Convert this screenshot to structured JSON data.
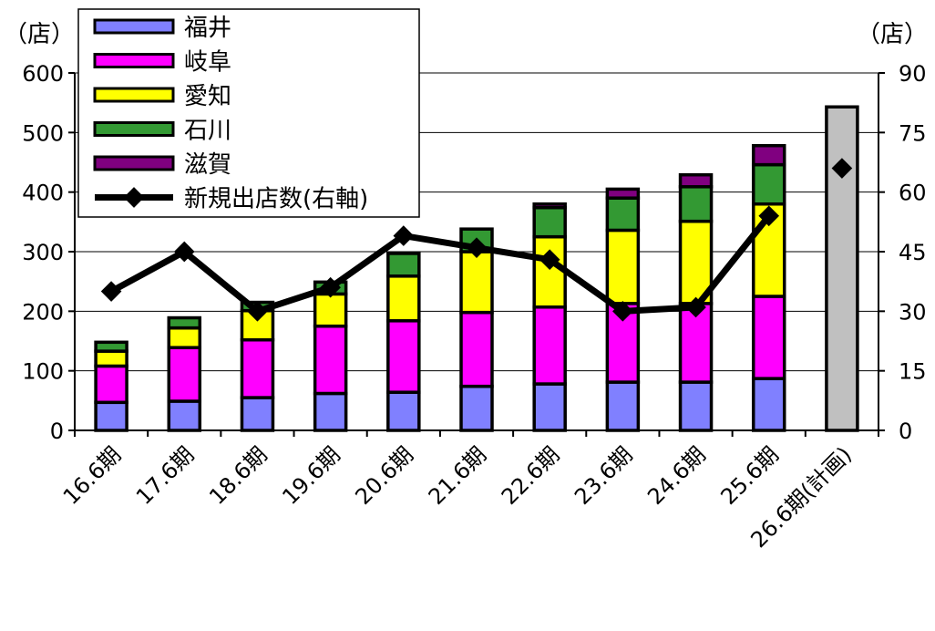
{
  "chart_data": {
    "type": "bar",
    "stacked": true,
    "categories": [
      "16.6期",
      "17.6期",
      "18.6期",
      "19.6期",
      "20.6期",
      "21.6期",
      "22.6期",
      "23.6期",
      "24.6期",
      "25.6期",
      "26.6期(計画)"
    ],
    "series": [
      {
        "name": "福井",
        "color": "#8080ff",
        "values": [
          47,
          49,
          55,
          62,
          64,
          74,
          78,
          81,
          81,
          87,
          null
        ]
      },
      {
        "name": "岐阜",
        "color": "#ff00ff",
        "values": [
          61,
          90,
          97,
          113,
          120,
          124,
          129,
          132,
          132,
          138,
          null
        ]
      },
      {
        "name": "愛知",
        "color": "#ffff00",
        "values": [
          25,
          33,
          49,
          54,
          75,
          102,
          118,
          123,
          138,
          155,
          null
        ]
      },
      {
        "name": "石川",
        "color": "#339933",
        "values": [
          15,
          17,
          14,
          20,
          38,
          38,
          49,
          54,
          58,
          66,
          null
        ]
      },
      {
        "name": "滋賀",
        "color": "#800080",
        "values": [
          0,
          0,
          0,
          0,
          0,
          0,
          6,
          15,
          20,
          32,
          null
        ]
      },
      {
        "name": "26.6期(計画)",
        "color": "#c0c0c0",
        "values": [
          null,
          null,
          null,
          null,
          null,
          null,
          null,
          null,
          null,
          null,
          543
        ]
      }
    ],
    "line_series": {
      "name": "新規出店数(右軸)",
      "axis": "right",
      "color": "#000000",
      "values": [
        35,
        45,
        30,
        36,
        49,
        46,
        43,
        30,
        31,
        54,
        66
      ]
    },
    "left_axis": {
      "unit": "（店）",
      "ylim": [
        0,
        600
      ],
      "ticks": [
        "0",
        "100",
        "200",
        "300",
        "400",
        "500",
        "600"
      ]
    },
    "right_axis": {
      "unit": "（店）",
      "ylim": [
        0,
        90
      ],
      "ticks": [
        "0",
        "15",
        "30",
        "45",
        "60",
        "75",
        "90"
      ]
    },
    "grid": true,
    "legend_position": "top-left"
  }
}
